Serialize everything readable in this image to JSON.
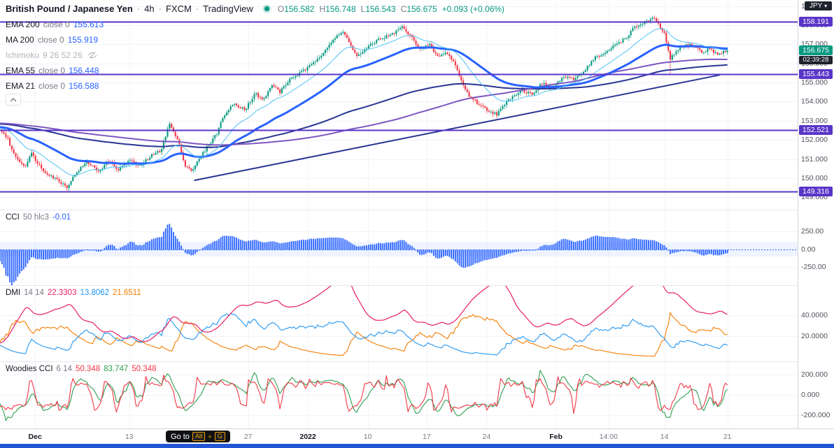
{
  "header": {
    "symbol_title": "British Pound / Japanese Yen",
    "separator": "·",
    "interval": "4h",
    "exchange": "FXCM",
    "platform": "TradingView",
    "market_status_color": "#089981",
    "ohlc": {
      "o_label": "O",
      "o": "156.582",
      "h_label": "H",
      "h": "156.748",
      "l_label": "L",
      "l": "156.543",
      "c_label": "C",
      "c": "156.675",
      "change": "+0.093 (+0.06%)",
      "color": "#089981",
      "label_color": "#787b86"
    }
  },
  "price_scale": {
    "currency": "JPY",
    "caret": "▾",
    "last_price_badge": {
      "label": "156.675",
      "value": 156.675,
      "color": "#089981"
    },
    "countdown": "02:39:28",
    "countdown_color": "#1e222d"
  },
  "goto_tooltip": {
    "label": "Go to",
    "keys": [
      "Alt",
      "G"
    ],
    "plus": "+",
    "accent": "#f0a000"
  },
  "footer": {
    "color": "#2356d6"
  },
  "chart_data": {
    "type": "candlestick",
    "title": "British Pound / Japanese Yen · 4h · FXCM",
    "up_color": "#089981",
    "down_color": "#f23645",
    "last_price": 156.675,
    "num_candles": 370,
    "data_span": 0.912,
    "y_range": [
      148.35,
      159.32
    ],
    "y_ticks": [
      {
        "label": "159.000",
        "v": 159
      },
      {
        "label": "158.000",
        "v": 158
      },
      {
        "label": "157.000",
        "v": 157
      },
      {
        "label": "156.000",
        "v": 156
      },
      {
        "label": "155.000",
        "v": 155
      },
      {
        "label": "154.000",
        "v": 154
      },
      {
        "label": "153.000",
        "v": 153
      },
      {
        "label": "152.000",
        "v": 152
      },
      {
        "label": "151.000",
        "v": 151
      },
      {
        "label": "150.000",
        "v": 150
      },
      {
        "label": "149.000",
        "v": 149
      }
    ],
    "x_ticks": [
      {
        "label": "Dec",
        "t": 0.044,
        "major": true
      },
      {
        "label": "13",
        "t": 0.162
      },
      {
        "label": "27",
        "t": 0.311
      },
      {
        "label": "2022",
        "t": 0.386,
        "major": true
      },
      {
        "label": "10",
        "t": 0.461
      },
      {
        "label": "17",
        "t": 0.535
      },
      {
        "label": "24",
        "t": 0.61
      },
      {
        "label": "Feb",
        "t": 0.697,
        "major": true
      },
      {
        "label": "14:00",
        "t": 0.763
      },
      {
        "label": "14",
        "t": 0.833
      },
      {
        "label": "21",
        "t": 0.912
      }
    ],
    "levels_color": "#5a35c8",
    "levels": [
      {
        "label": "158.191",
        "value": 158.191
      },
      {
        "label": "155.443",
        "value": 155.443
      },
      {
        "label": "152.521",
        "value": 152.521
      },
      {
        "label": "149.316",
        "value": 149.316
      }
    ],
    "trendline": {
      "t1": 0.267,
      "p1": 149.88,
      "t2": 0.99,
      "p2": 155.4,
      "color": "#283593",
      "width": 2
    },
    "overlays": [
      {
        "name": "EMA 200",
        "params": "close 0",
        "value": "155.613",
        "value_color": "#2962ff",
        "type": "ema",
        "length": 200,
        "color": "#283593",
        "width": 2
      },
      {
        "name": "MA 200",
        "params": "close 0",
        "value": "155.919",
        "value_color": "#2962ff",
        "type": "sma",
        "length": 200,
        "color": "#7e57c2",
        "width": 2
      },
      {
        "name": "Ichimoku",
        "params": "9 26 52 26",
        "hidden": true
      },
      {
        "name": "EMA 55",
        "params": "close 0",
        "value": "156.448",
        "value_color": "#2962ff",
        "type": "ema",
        "length": 55,
        "color": "#2962ff",
        "width": 3
      },
      {
        "name": "EMA 21",
        "params": "close 0",
        "value": "156.588",
        "value_color": "#2962ff",
        "type": "ema",
        "length": 21,
        "color": "#4fc3f7",
        "width": 1
      }
    ],
    "price_path": [
      [
        0.0,
        152.55
      ],
      [
        0.01,
        152.1
      ],
      [
        0.019,
        151.25
      ],
      [
        0.034,
        150.6
      ],
      [
        0.043,
        151.3
      ],
      [
        0.058,
        150.45
      ],
      [
        0.077,
        149.95
      ],
      [
        0.092,
        149.55
      ],
      [
        0.106,
        150.35
      ],
      [
        0.12,
        150.85
      ],
      [
        0.135,
        150.35
      ],
      [
        0.149,
        150.9
      ],
      [
        0.163,
        150.45
      ],
      [
        0.178,
        150.95
      ],
      [
        0.192,
        150.6
      ],
      [
        0.207,
        151.15
      ],
      [
        0.221,
        151.45
      ],
      [
        0.233,
        152.85
      ],
      [
        0.245,
        151.9
      ],
      [
        0.255,
        150.65
      ],
      [
        0.264,
        150.4
      ],
      [
        0.279,
        151.3
      ],
      [
        0.298,
        152.35
      ],
      [
        0.308,
        153.3
      ],
      [
        0.322,
        153.9
      ],
      [
        0.337,
        153.6
      ],
      [
        0.351,
        154.45
      ],
      [
        0.361,
        154.05
      ],
      [
        0.375,
        154.9
      ],
      [
        0.385,
        154.5
      ],
      [
        0.399,
        155.2
      ],
      [
        0.413,
        155.5
      ],
      [
        0.428,
        155.9
      ],
      [
        0.442,
        156.5
      ],
      [
        0.457,
        157.2
      ],
      [
        0.471,
        157.65
      ],
      [
        0.481,
        157.1
      ],
      [
        0.49,
        156.35
      ],
      [
        0.5,
        156.65
      ],
      [
        0.519,
        157.25
      ],
      [
        0.538,
        157.5
      ],
      [
        0.553,
        157.9
      ],
      [
        0.567,
        157.3
      ],
      [
        0.577,
        156.8
      ],
      [
        0.591,
        156.95
      ],
      [
        0.601,
        156.35
      ],
      [
        0.615,
        156.55
      ],
      [
        0.625,
        156.0
      ],
      [
        0.635,
        155.0
      ],
      [
        0.644,
        154.35
      ],
      [
        0.654,
        154.0
      ],
      [
        0.668,
        153.6
      ],
      [
        0.683,
        153.35
      ],
      [
        0.702,
        154.2
      ],
      [
        0.716,
        154.6
      ],
      [
        0.731,
        154.4
      ],
      [
        0.745,
        154.95
      ],
      [
        0.76,
        154.7
      ],
      [
        0.774,
        155.3
      ],
      [
        0.788,
        155.15
      ],
      [
        0.803,
        155.6
      ],
      [
        0.817,
        156.3
      ],
      [
        0.832,
        156.5
      ],
      [
        0.846,
        157.0
      ],
      [
        0.861,
        157.35
      ],
      [
        0.87,
        157.8
      ],
      [
        0.885,
        158.15
      ],
      [
        0.899,
        158.35
      ],
      [
        0.913,
        157.6
      ],
      [
        0.921,
        156.2
      ],
      [
        0.933,
        156.8
      ],
      [
        0.947,
        157.0
      ],
      [
        0.957,
        156.85
      ],
      [
        0.966,
        156.55
      ],
      [
        0.976,
        156.8
      ],
      [
        0.986,
        156.45
      ],
      [
        1.0,
        156.675
      ]
    ],
    "wick_lows": [
      {
        "t": 0.092,
        "low": 149.32
      },
      {
        "t": 0.921,
        "low": 155.45
      }
    ],
    "wick_highs": [
      {
        "t": 0.233,
        "high": 152.97
      },
      {
        "t": 0.471,
        "high": 157.78
      },
      {
        "t": 0.899,
        "high": 158.45
      }
    ],
    "panes": {
      "cci": {
        "title": "CCI",
        "params": "50 hlc3",
        "values": [
          {
            "text": "-0.01",
            "color": "#2962ff"
          }
        ],
        "length": 50,
        "source": "hlc3",
        "color": "#2962ff",
        "band": [
          -100,
          100
        ],
        "range": [
          -500,
          540
        ],
        "ticks": [
          {
            "label": "250.00",
            "v": 250
          },
          {
            "label": "0.00",
            "v": 0
          },
          {
            "label": "-250.00",
            "v": -250
          }
        ]
      },
      "dmi": {
        "title": "DMI",
        "params": "14 14",
        "values": [
          {
            "text": "22.3303",
            "color": "#e91e63"
          },
          {
            "text": "13.8062",
            "color": "#2196f3"
          },
          {
            "text": "21.6511",
            "color": "#f57c00"
          }
        ],
        "length": 14,
        "range": [
          -4,
          68
        ],
        "ticks": [
          {
            "label": "40.0000",
            "v": 40
          },
          {
            "label": "20.0000",
            "v": 20
          }
        ]
      },
      "woodies": {
        "title": "Woodies CCI",
        "params": "6 14",
        "values": [
          {
            "text": "50.348",
            "color": "#f23645"
          },
          {
            "text": "83.747",
            "color": "#2e9e4f"
          },
          {
            "text": "50.348",
            "color": "#f23645"
          }
        ],
        "lengths": [
          6,
          14
        ],
        "line_colors": [
          "#f23645",
          "#2e9e4f"
        ],
        "range": [
          -331,
          324
        ],
        "ticks": [
          {
            "label": "200.000",
            "v": 200
          },
          {
            "label": "0.000",
            "v": 0
          },
          {
            "label": "-200.000",
            "v": -200
          }
        ]
      }
    }
  }
}
